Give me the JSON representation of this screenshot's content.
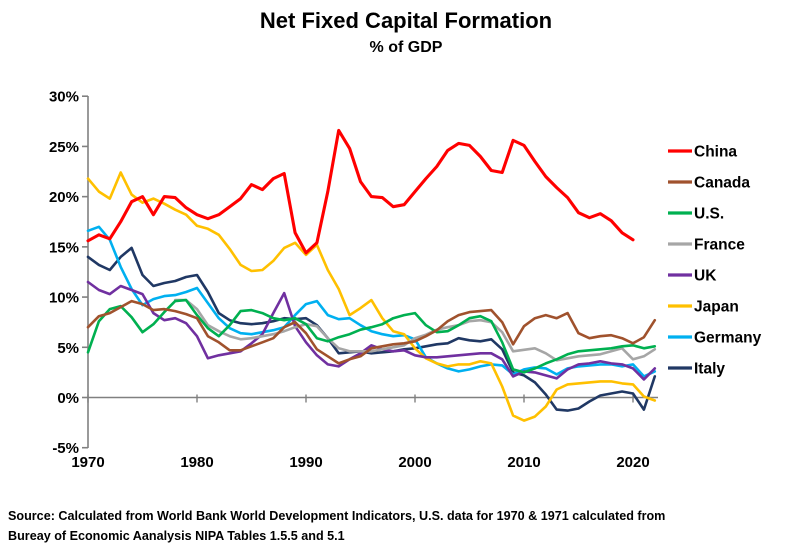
{
  "title": "Net Fixed Capital Formation",
  "subtitle": "% of GDP",
  "source": {
    "line1": "Source:  Calculated from World Bank World Development Indicators, U.S. data for 1970 & 1971 calculated from",
    "line2": "Bureay of Economic Aanalysis NIPA Tables 1.5.5 and 5.1"
  },
  "colors": {
    "axis": "#808080",
    "text": "#000000",
    "background": "#ffffff"
  },
  "chart_data": {
    "type": "line",
    "title": "Net Fixed Capital Formation",
    "subtitle": "% of GDP",
    "xlabel": "",
    "ylabel": "",
    "x_start_year": 1970,
    "x_end_year": 2022,
    "xlim": [
      1970,
      2022.5
    ],
    "ylim": [
      -5,
      30
    ],
    "grid": false,
    "zero_axis": true,
    "legend_position": "right",
    "x_ticks": [
      {
        "year": 1970,
        "label": "1970"
      },
      {
        "year": 1980,
        "label": "1980"
      },
      {
        "year": 1990,
        "label": "1990"
      },
      {
        "year": 2000,
        "label": "2000"
      },
      {
        "year": 2010,
        "label": "2010"
      },
      {
        "year": 2020,
        "label": "2020"
      }
    ],
    "y_ticks": [
      {
        "value": 30,
        "label": "30%"
      },
      {
        "value": 25,
        "label": "25%"
      },
      {
        "value": 20,
        "label": "20%"
      },
      {
        "value": 15,
        "label": "15%"
      },
      {
        "value": 10,
        "label": "10%"
      },
      {
        "value": 5,
        "label": "5%"
      },
      {
        "value": 0,
        "label": "0%"
      },
      {
        "value": -5,
        "label": "-5%"
      }
    ],
    "series": [
      {
        "id": "china",
        "name": "China",
        "color": "#FF0000",
        "values": [
          15.6,
          16.2,
          15.8,
          17.5,
          19.5,
          20.0,
          18.2,
          20.0,
          19.9,
          18.9,
          18.2,
          17.8,
          18.2,
          19.0,
          19.8,
          21.2,
          20.7,
          21.8,
          22.3,
          16.4,
          14.4,
          15.4,
          20.5,
          26.6,
          24.8,
          21.5,
          20.0,
          19.9,
          19.0,
          19.2,
          20.5,
          21.8,
          23.0,
          24.6,
          25.3,
          25.1,
          24.0,
          22.6,
          22.4,
          25.6,
          25.1,
          23.5,
          22.0,
          20.9,
          19.9,
          18.4,
          17.9,
          18.3,
          17.6,
          16.4,
          15.7,
          null,
          null
        ]
      },
      {
        "id": "canada",
        "name": "Canada",
        "color": "#A0522D",
        "values": [
          7.0,
          8.1,
          8.4,
          9.0,
          9.6,
          9.3,
          8.7,
          8.8,
          8.6,
          8.3,
          7.9,
          6.1,
          5.5,
          4.7,
          4.7,
          5.1,
          5.5,
          5.9,
          7.0,
          7.5,
          6.4,
          4.8,
          4.1,
          3.4,
          3.8,
          4.1,
          4.9,
          5.1,
          5.3,
          5.4,
          5.6,
          6.1,
          6.7,
          7.6,
          8.2,
          8.5,
          8.6,
          8.7,
          7.5,
          5.3,
          7.1,
          7.9,
          8.2,
          7.9,
          8.4,
          6.4,
          5.9,
          6.1,
          6.2,
          5.9,
          5.4,
          6.0,
          7.7
        ]
      },
      {
        "id": "us",
        "name": "U.S.",
        "color": "#00B050",
        "values": [
          4.5,
          7.6,
          8.8,
          9.1,
          8.0,
          6.5,
          7.3,
          8.5,
          9.6,
          9.7,
          8.2,
          6.9,
          6.1,
          7.2,
          8.6,
          8.7,
          8.4,
          7.9,
          7.7,
          7.9,
          7.3,
          5.9,
          5.6,
          6.0,
          6.3,
          6.75,
          7.0,
          7.3,
          7.9,
          8.2,
          8.4,
          7.2,
          6.5,
          6.6,
          7.2,
          7.9,
          8.1,
          7.6,
          5.5,
          2.8,
          2.5,
          2.9,
          3.4,
          3.8,
          4.3,
          4.6,
          4.7,
          4.8,
          4.9,
          5.1,
          5.2,
          4.9,
          5.1
        ]
      },
      {
        "id": "france",
        "name": "France",
        "color": "#A6A6A6",
        "values": [
          null,
          null,
          null,
          null,
          null,
          null,
          null,
          null,
          9.7,
          9.7,
          8.8,
          7.2,
          6.6,
          6.1,
          5.8,
          5.9,
          6.1,
          6.3,
          6.6,
          7.0,
          7.3,
          7.1,
          5.9,
          4.9,
          4.6,
          4.6,
          4.6,
          4.8,
          5.0,
          5.2,
          5.9,
          6.25,
          6.75,
          7.0,
          7.2,
          7.6,
          7.7,
          7.5,
          6.5,
          4.6,
          4.75,
          4.9,
          4.4,
          3.7,
          3.9,
          4.1,
          4.2,
          4.3,
          4.6,
          4.9,
          3.8,
          4.1,
          4.8
        ]
      },
      {
        "id": "uk",
        "name": "UK",
        "color": "#7030A0",
        "values": [
          11.5,
          10.7,
          10.3,
          11.1,
          10.7,
          10.3,
          8.4,
          7.7,
          7.9,
          7.4,
          6.1,
          3.9,
          4.2,
          4.4,
          4.6,
          5.4,
          6.3,
          8.4,
          10.4,
          7.1,
          5.5,
          4.2,
          3.3,
          3.1,
          3.8,
          4.4,
          5.2,
          4.8,
          4.6,
          4.7,
          4.2,
          4.0,
          4.0,
          4.1,
          4.2,
          4.3,
          4.4,
          4.4,
          3.8,
          2.1,
          2.6,
          2.5,
          2.2,
          1.9,
          2.8,
          3.3,
          3.4,
          3.6,
          3.4,
          3.3,
          2.9,
          1.8,
          2.9
        ]
      },
      {
        "id": "japan",
        "name": "Japan",
        "color": "#FFC000",
        "values": [
          21.8,
          20.5,
          19.8,
          22.4,
          20.2,
          19.4,
          19.8,
          19.3,
          18.7,
          18.2,
          17.1,
          16.8,
          16.2,
          14.8,
          13.2,
          12.6,
          12.7,
          13.6,
          14.9,
          15.4,
          14.2,
          15.2,
          12.7,
          10.8,
          8.2,
          8.9,
          9.7,
          7.9,
          6.6,
          6.3,
          4.9,
          3.9,
          3.4,
          3.1,
          3.3,
          3.3,
          3.6,
          3.4,
          1.1,
          -1.8,
          -2.3,
          -1.9,
          -0.9,
          0.8,
          1.3,
          1.4,
          1.5,
          1.6,
          1.6,
          1.4,
          1.3,
          0.1,
          -0.3
        ]
      },
      {
        "id": "germany",
        "name": "Germany",
        "color": "#00B0F0",
        "values": [
          16.6,
          17.0,
          15.7,
          13.0,
          10.8,
          9.2,
          9.8,
          10.1,
          10.2,
          10.5,
          10.9,
          9.4,
          7.9,
          6.9,
          6.4,
          6.3,
          6.5,
          6.7,
          7.0,
          8.2,
          9.3,
          9.6,
          8.2,
          7.8,
          7.9,
          7.2,
          6.6,
          6.3,
          6.1,
          6.2,
          5.8,
          4.0,
          3.4,
          2.9,
          2.6,
          2.8,
          3.1,
          3.3,
          3.2,
          2.3,
          2.8,
          3.0,
          2.9,
          2.3,
          2.9,
          3.1,
          3.2,
          3.3,
          3.3,
          3.1,
          3.3,
          2.1,
          2.6
        ]
      },
      {
        "id": "italy",
        "name": "Italy",
        "color": "#203864",
        "values": [
          14.0,
          13.2,
          12.7,
          14.0,
          14.9,
          12.2,
          11.1,
          11.4,
          11.6,
          12.0,
          12.2,
          10.5,
          8.4,
          7.7,
          7.4,
          7.3,
          7.4,
          7.6,
          7.9,
          7.8,
          7.9,
          7.2,
          5.9,
          4.4,
          4.5,
          4.6,
          4.4,
          4.5,
          4.6,
          4.8,
          4.9,
          5.1,
          5.3,
          5.4,
          5.9,
          5.7,
          5.6,
          5.8,
          4.8,
          2.5,
          2.2,
          1.5,
          0.3,
          -1.2,
          -1.3,
          -1.1,
          -0.4,
          0.2,
          0.4,
          0.6,
          0.4,
          -1.2,
          2.1
        ]
      }
    ]
  }
}
